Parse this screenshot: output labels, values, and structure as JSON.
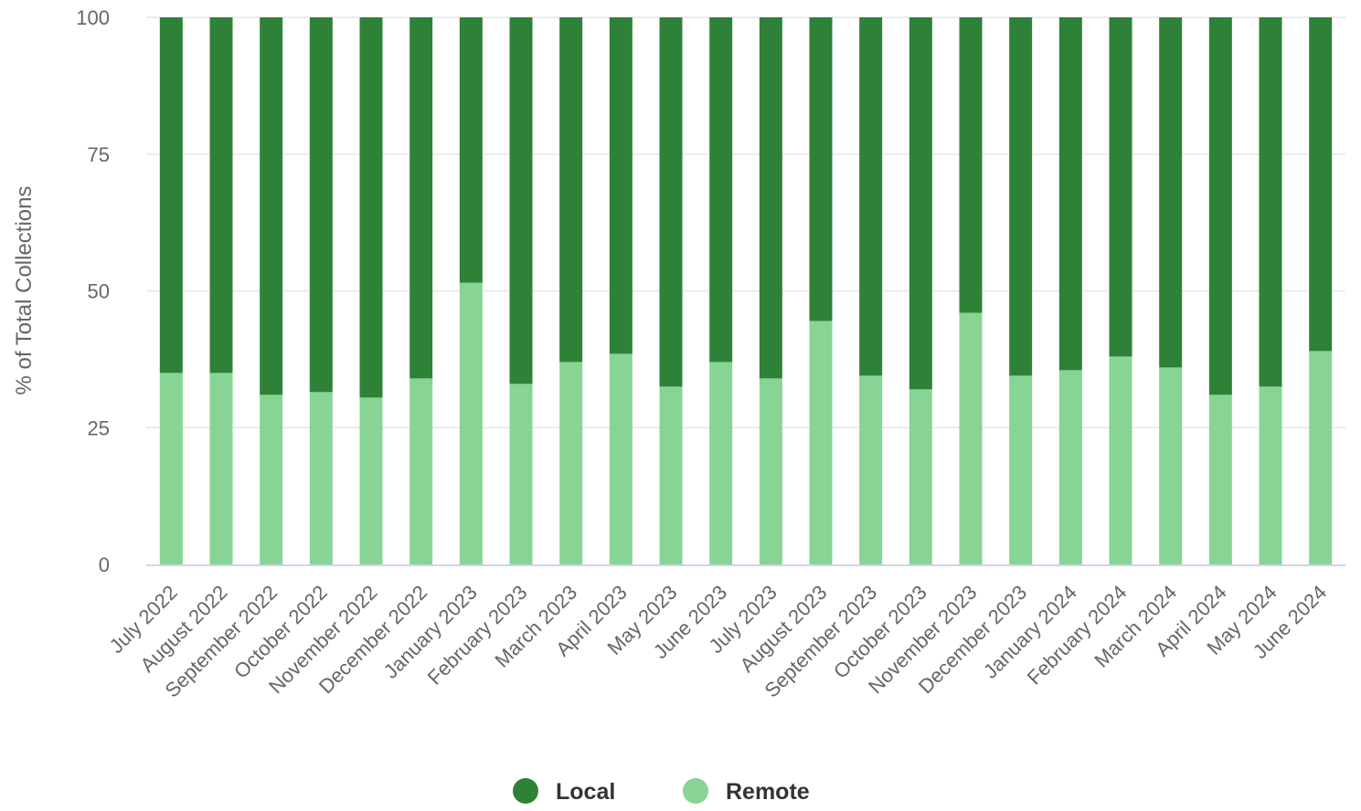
{
  "chart_data": {
    "type": "bar",
    "stacked": true,
    "categories": [
      "July 2022",
      "August 2022",
      "September 2022",
      "October 2022",
      "November 2022",
      "December 2022",
      "January 2023",
      "February 2023",
      "March 2023",
      "April 2023",
      "May 2023",
      "June 2023",
      "July 2023",
      "August 2023",
      "September 2023",
      "October 2023",
      "November 2023",
      "December 2023",
      "January 2024",
      "February 2024",
      "March 2024",
      "April 2024",
      "May 2024",
      "June 2024"
    ],
    "series": [
      {
        "name": "Remote",
        "color": "#88d494",
        "values": [
          35,
          35,
          31,
          31.5,
          30.5,
          34,
          51.5,
          33,
          37,
          38.5,
          32.5,
          37,
          34,
          44.5,
          34.5,
          32,
          46,
          34.5,
          35.5,
          38,
          36,
          31,
          32.5,
          39
        ]
      },
      {
        "name": "Local",
        "color": "#2e8237",
        "values": [
          65,
          65,
          69,
          68.5,
          69.5,
          66,
          48.5,
          67,
          63,
          61.5,
          67.5,
          63,
          66,
          55.5,
          65.5,
          68,
          54,
          65.5,
          64.5,
          62,
          64,
          69,
          67.5,
          61
        ]
      }
    ],
    "legend": [
      {
        "name": "Local",
        "color": "#2e8237"
      },
      {
        "name": "Remote",
        "color": "#88d494"
      }
    ],
    "ylabel": "% of Total Collections",
    "ylim": [
      0,
      100
    ],
    "yticks": [
      0,
      25,
      50,
      75,
      100
    ],
    "grid": true,
    "legend_position": "bottom-center"
  }
}
